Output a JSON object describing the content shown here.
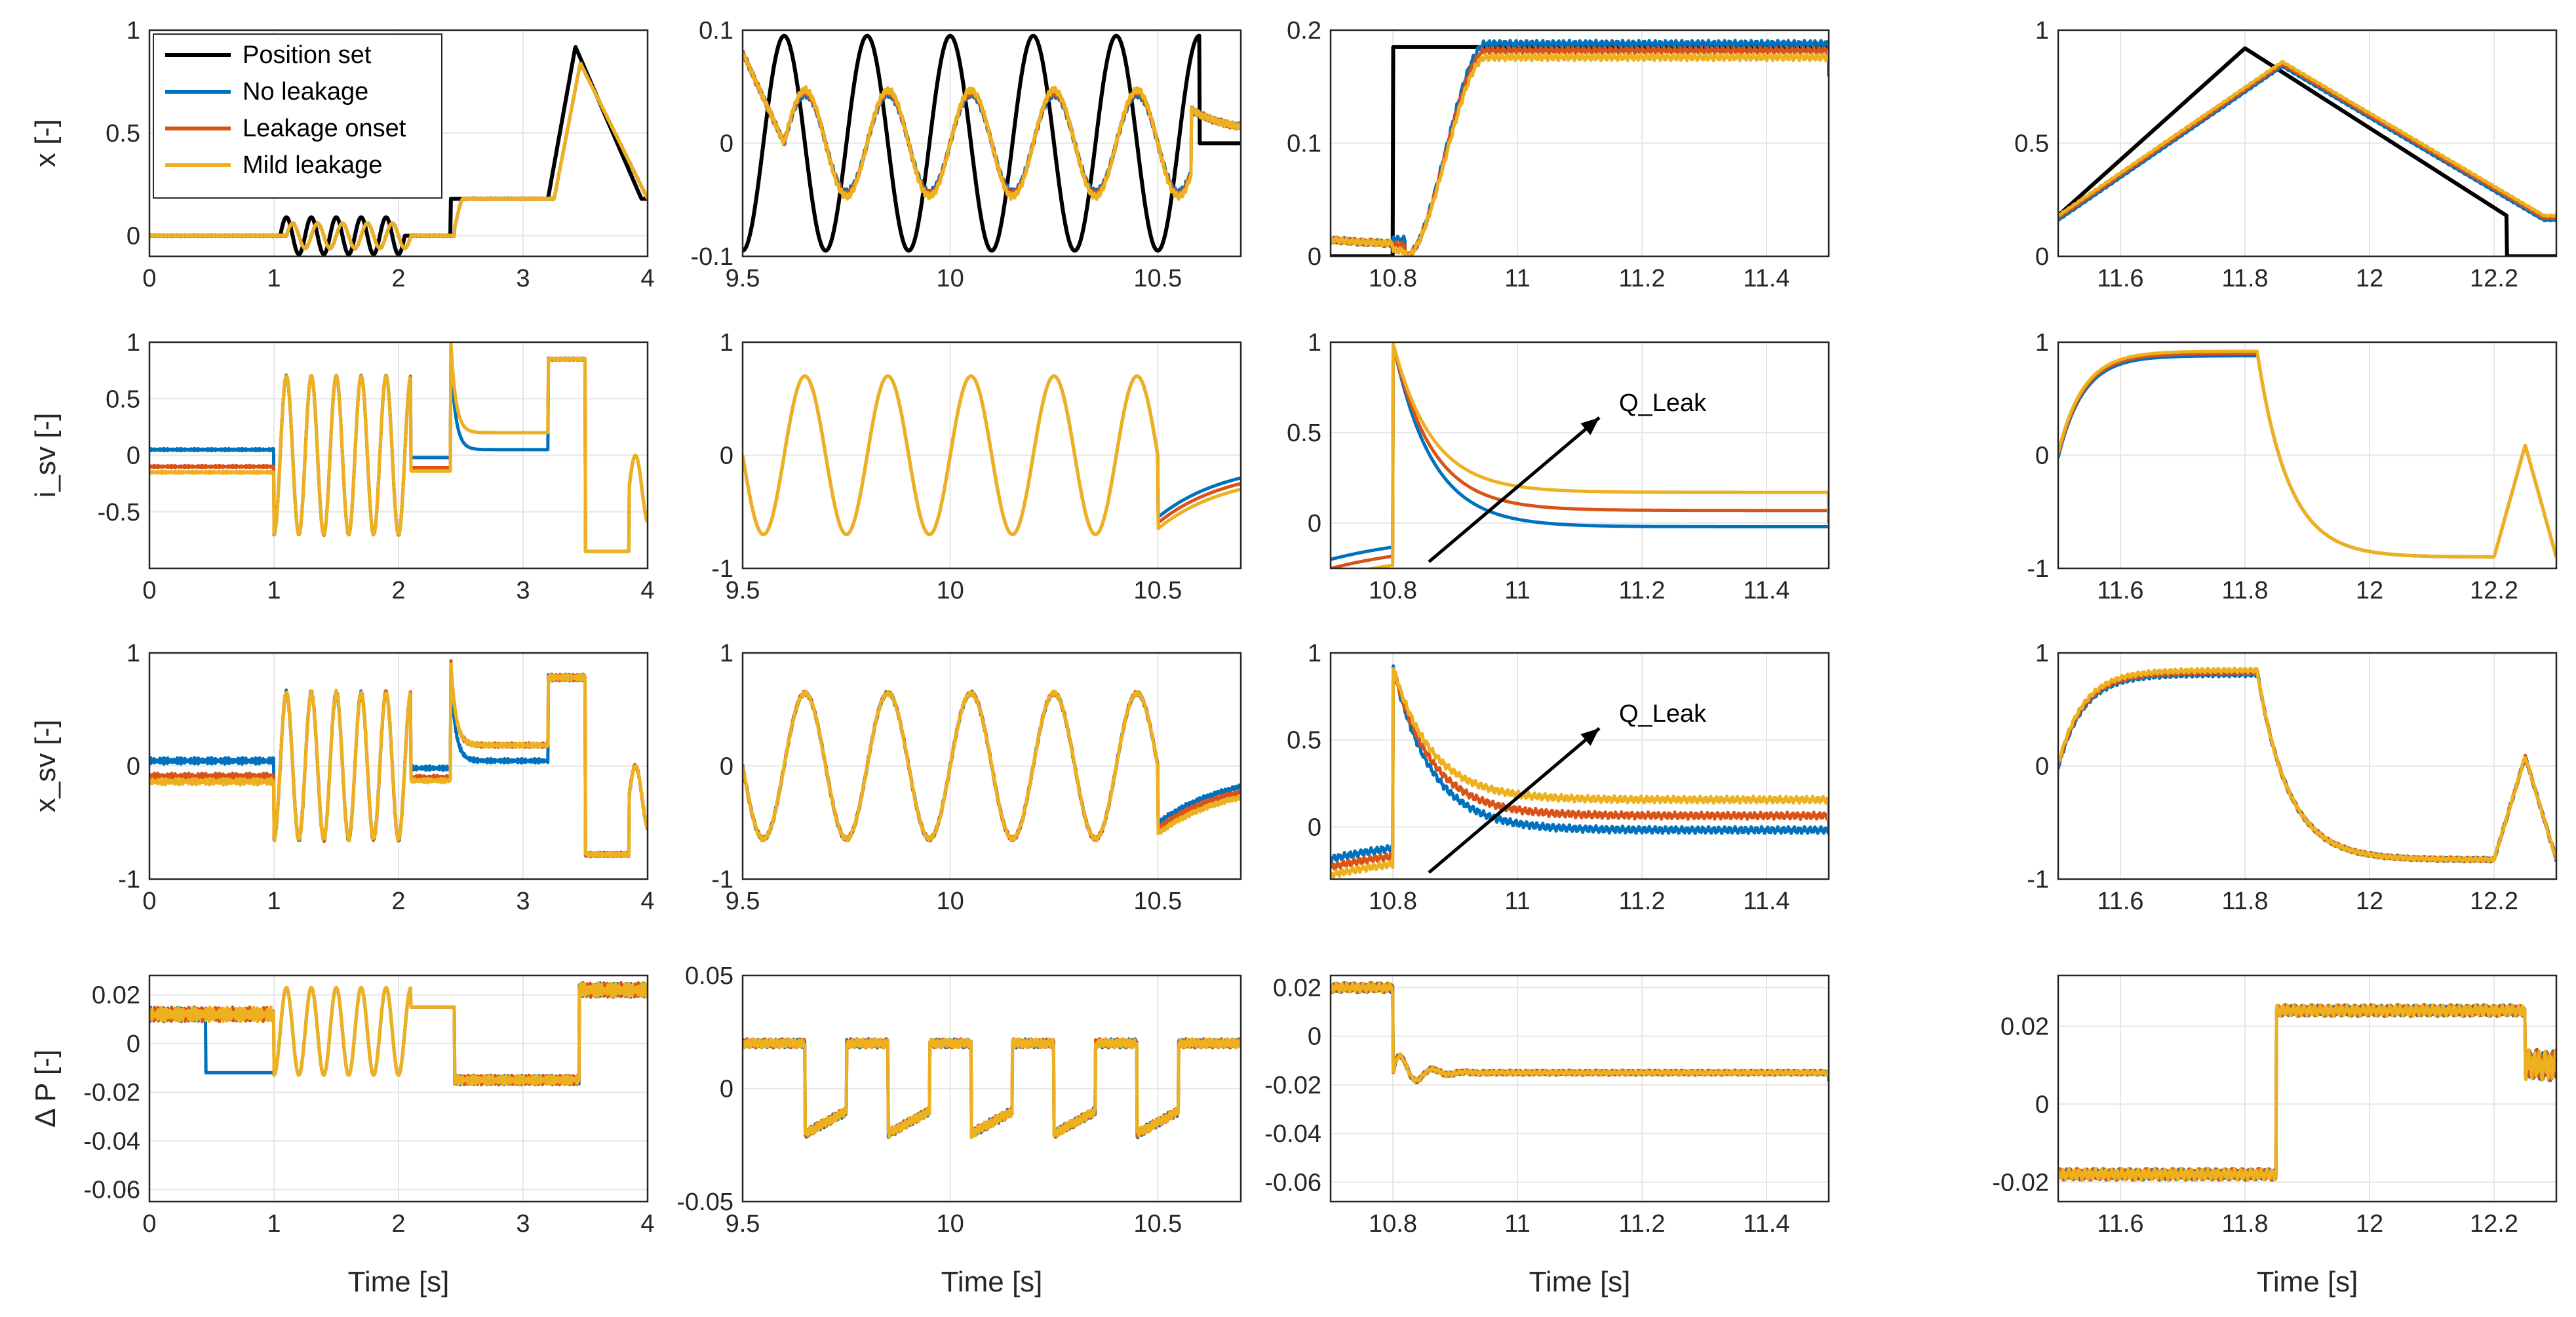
{
  "colors": {
    "position_set": "#000000",
    "no_leakage": "#0072BD",
    "leakage_onset": "#D95319",
    "mild_leakage": "#EDB120",
    "grid": "#e6e6e6",
    "axis": "#262626"
  },
  "chart_data": {
    "type": "line",
    "layout": "4 rows x 4 columns of line subplots",
    "series_names": [
      "Position set",
      "No leakage",
      "Leakage onset",
      "Mild leakage"
    ],
    "legend": {
      "location": "top-left of first subplot",
      "entries": [
        "Position set",
        "No leakage",
        "Leakage onset",
        "Mild leakage"
      ]
    },
    "xlabel": "Time [s]",
    "columns": [
      {
        "xlim": [
          0,
          4
        ],
        "xticks": [
          "0",
          "1",
          "2",
          "3",
          "4"
        ]
      },
      {
        "xlim": [
          9.5,
          10.7
        ],
        "xticks": [
          "9.5",
          "10",
          "10.5"
        ]
      },
      {
        "xlim": [
          10.7,
          11.5
        ],
        "xticks": [
          "10.8",
          "11",
          "11.2",
          "11.4"
        ]
      },
      {
        "xlim": [
          11.5,
          12.3
        ],
        "xticks": [
          "11.6",
          "11.8",
          "12",
          "12.2"
        ]
      }
    ],
    "rows": [
      {
        "ylabel": "x [-]",
        "panels": [
          {
            "ylim": [
              -0.1,
              1
            ],
            "yticks": [
              "0",
              "0.5",
              "1"
            ]
          },
          {
            "ylim": [
              -0.1,
              0.1
            ],
            "yticks": [
              "-0.1",
              "0",
              "0.1"
            ]
          },
          {
            "ylim": [
              0,
              0.2
            ],
            "yticks": [
              "0",
              "0.1",
              "0.2"
            ]
          },
          {
            "ylim": [
              0,
              1
            ],
            "yticks": [
              "0",
              "0.5",
              "1"
            ]
          }
        ]
      },
      {
        "ylabel": "i_sv [-]",
        "panels": [
          {
            "ylim": [
              -1,
              1
            ],
            "yticks": [
              "-0.5",
              "0",
              "0.5",
              "1"
            ]
          },
          {
            "ylim": [
              -1,
              1
            ],
            "yticks": [
              "-1",
              "0",
              "1"
            ]
          },
          {
            "ylim": [
              -0.25,
              1
            ],
            "yticks": [
              "0",
              "0.5",
              "1"
            ],
            "annotation": "Q_Leak"
          },
          {
            "ylim": [
              -1,
              1
            ],
            "yticks": [
              "-1",
              "0",
              "1"
            ]
          }
        ]
      },
      {
        "ylabel": "x_sv [-]",
        "panels": [
          {
            "ylim": [
              -1,
              1
            ],
            "yticks": [
              "-1",
              "0",
              "1"
            ]
          },
          {
            "ylim": [
              -1,
              1
            ],
            "yticks": [
              "-1",
              "0",
              "1"
            ]
          },
          {
            "ylim": [
              -0.3,
              1
            ],
            "yticks": [
              "0",
              "0.5",
              "1"
            ],
            "annotation": "Q_Leak"
          },
          {
            "ylim": [
              -1,
              1
            ],
            "yticks": [
              "-1",
              "0",
              "1"
            ]
          }
        ]
      },
      {
        "ylabel": "Δ P [-]",
        "panels": [
          {
            "ylim": [
              -0.065,
              0.028
            ],
            "yticks": [
              "-0.06",
              "-0.04",
              "-0.02",
              "0",
              "0.02"
            ]
          },
          {
            "ylim": [
              -0.05,
              0.05
            ],
            "yticks": [
              "-0.05",
              "0",
              "0.05"
            ]
          },
          {
            "ylim": [
              -0.068,
              0.025
            ],
            "yticks": [
              "-0.06",
              "-0.04",
              "-0.02",
              "0",
              "0.02"
            ]
          },
          {
            "ylim": [
              -0.025,
              0.033
            ],
            "yticks": [
              "-0.02",
              "0",
              "0.02"
            ]
          }
        ]
      }
    ]
  }
}
